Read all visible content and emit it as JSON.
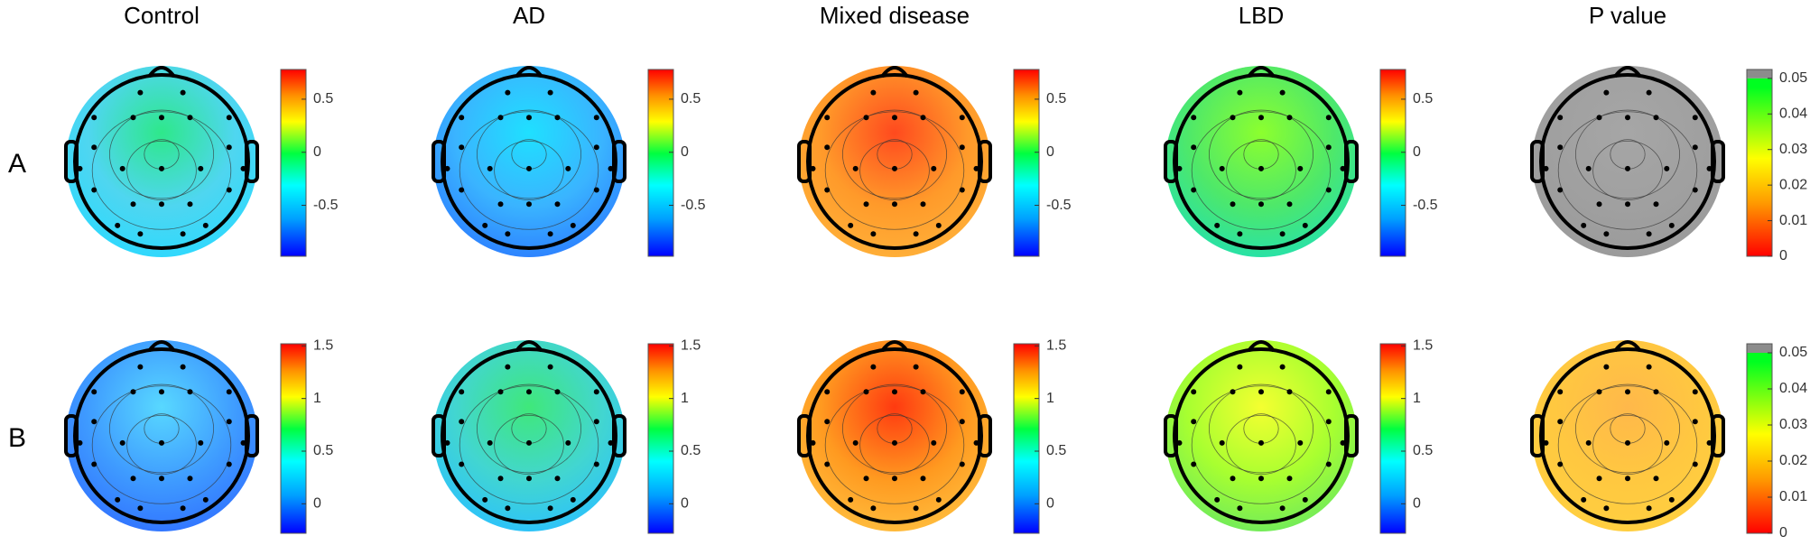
{
  "columns": [
    "Control",
    "AD",
    "Mixed disease",
    "LBD",
    "P value"
  ],
  "rows": [
    "A",
    "B"
  ],
  "colorbars": {
    "A": {
      "lim": [
        -0.98,
        0.78
      ],
      "ticks": [
        0.5,
        0,
        -0.5
      ]
    },
    "A_p": {
      "lim": [
        0,
        0.0525
      ],
      "ticks": [
        0.05,
        0.04,
        0.03,
        0.02,
        0.01,
        0
      ]
    },
    "B": {
      "lim": [
        -0.28,
        1.52
      ],
      "ticks": [
        1.5,
        1,
        0.5,
        0
      ]
    },
    "B_p": {
      "lim": [
        0,
        0.0525
      ],
      "ticks": [
        0.05,
        0.04,
        0.03,
        0.02,
        0.01,
        0
      ]
    }
  }
}
